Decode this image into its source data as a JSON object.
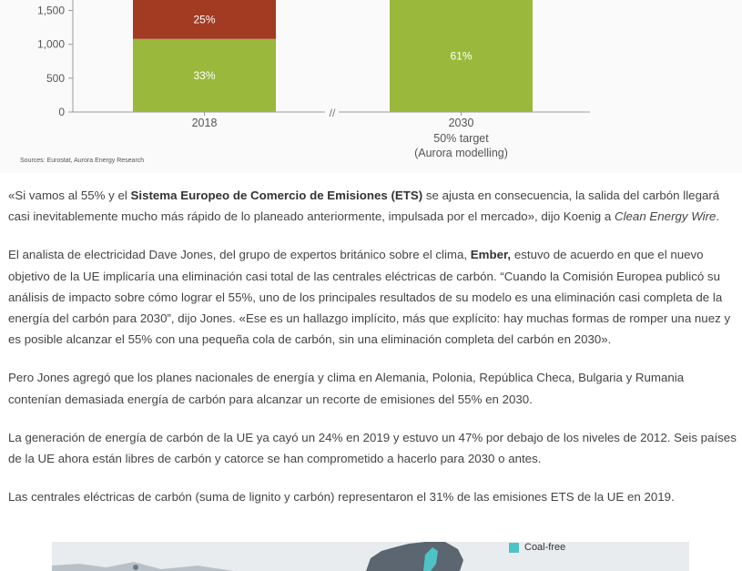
{
  "chart_data": {
    "type": "bar",
    "stacked": true,
    "categories": [
      "2018",
      "2030"
    ],
    "category_sublabels": [
      "",
      "50% target\n(Aurora modelling)"
    ],
    "y_ticks": [
      0,
      500,
      1000,
      1500
    ],
    "ylim": [
      0,
      1900
    ],
    "series": [
      {
        "name": "",
        "color": "#9ab93c",
        "values": [
          1080,
          2400
        ],
        "labels": [
          "33%",
          "61%"
        ]
      },
      {
        "name": "",
        "color": "#a33a22",
        "values": [
          820,
          0
        ],
        "labels": [
          "25%",
          ""
        ]
      }
    ],
    "axis_break": "//",
    "source": "Sources: Eurostat, Aurora Energy Research"
  },
  "article": {
    "p1": {
      "t1": "«Si vamos al 55% y el ",
      "b1": "Sistema Europeo de Comercio de Emisiones (ETS)",
      "t2": " se ajusta en consecuencia, la salida del carbón llegará casi inevitablemente mucho más rápido de lo planeado anteriormente, impulsada por el mercado», dijo Koenig a ",
      "i1": "Clean Energy Wire",
      "t3": "."
    },
    "p2": {
      "t1": "El analista de electricidad Dave Jones, del grupo de expertos británico sobre el clima, ",
      "b1": "Ember,",
      "t2": " estuvo de acuerdo en que el nuevo objetivo de la UE implicaría una eliminación casi total de las centrales eléctricas de carbón. “Cuando la Comisión Europea publicó su análisis de impacto sobre cómo lograr el 55%, uno de los principales resultados de su modelo es una eliminación casi completa de la energía del carbón para 2030”, dijo Jones. «Ese es un hallazgo implícito, más que explícito: hay muchas formas de romper una nuez y es posible alcanzar el 55% con una pequeña cola de carbón, sin una eliminación completa del carbón en 2030»."
    },
    "p3": "Pero Jones agregó que los planes nacionales de energía y clima en Alemania, Polonia, República Checa, Bulgaria y Rumania contenían demasiada energía de carbón para alcanzar un recorte de emisiones del 55% en 2030.",
    "p4": "La generación de energía de carbón de la UE ya cayó un 24% en 2019 y estuvo un 47% por debajo de los niveles de 2012. Seis países de la UE ahora están libres de carbón y catorce se han comprometido a hacerlo para 2030 o antes.",
    "p5": "Las centrales eléctricas de carbón (suma de lignito y carbón) representaron el 31% de las emisiones ETS de la UE en 2019."
  },
  "map": {
    "legend_label": "Coal-free",
    "legend_color": "#4ec3c6"
  }
}
